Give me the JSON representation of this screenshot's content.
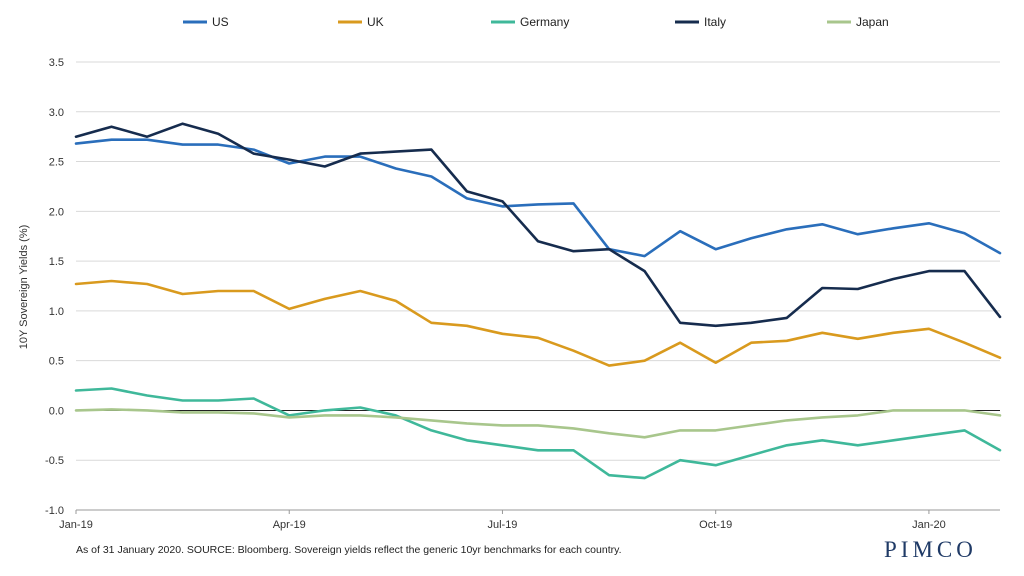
{
  "chart_data": {
    "type": "line",
    "title": "",
    "xlabel": "",
    "ylabel": "10Y Sovereign Yields (%)",
    "ylim": [
      -1.0,
      3.5
    ],
    "yticks": [
      "3.5",
      "3.0",
      "2.5",
      "2.0",
      "1.5",
      "1.0",
      "0.5",
      "0.0",
      "-0.5",
      "-1.0"
    ],
    "x_range": [
      0,
      13
    ],
    "xticks": [
      {
        "label": "Jan-19",
        "month": 0
      },
      {
        "label": "Apr-19",
        "month": 3
      },
      {
        "label": "Jul-19",
        "month": 6
      },
      {
        "label": "Oct-19",
        "month": 9
      },
      {
        "label": "Jan-20",
        "month": 12
      }
    ],
    "x": [
      0,
      0.5,
      1,
      1.5,
      2,
      2.5,
      3,
      3.5,
      4,
      4.5,
      5,
      5.5,
      6,
      6.5,
      7,
      7.5,
      8,
      8.5,
      9,
      9.5,
      10,
      10.5,
      11,
      11.5,
      12,
      12.5,
      13
    ],
    "legend_position": "top",
    "grid": true,
    "series": [
      {
        "name": "US",
        "color": "#2a6ebb",
        "values": [
          2.68,
          2.72,
          2.72,
          2.67,
          2.67,
          2.62,
          2.48,
          2.55,
          2.55,
          2.43,
          2.35,
          2.13,
          2.05,
          2.07,
          2.08,
          1.62,
          1.55,
          1.8,
          1.62,
          1.73,
          1.82,
          1.87,
          1.77,
          1.83,
          1.88,
          1.78,
          1.58
        ]
      },
      {
        "name": "UK",
        "color": "#d99a1e",
        "values": [
          1.27,
          1.3,
          1.27,
          1.17,
          1.2,
          1.2,
          1.02,
          1.12,
          1.2,
          1.1,
          0.88,
          0.85,
          0.77,
          0.73,
          0.6,
          0.45,
          0.5,
          0.68,
          0.48,
          0.68,
          0.7,
          0.78,
          0.72,
          0.78,
          0.82,
          0.68,
          0.53
        ]
      },
      {
        "name": "Germany",
        "color": "#3fb89a",
        "values": [
          0.2,
          0.22,
          0.15,
          0.1,
          0.1,
          0.12,
          -0.05,
          0.0,
          0.03,
          -0.05,
          -0.2,
          -0.3,
          -0.35,
          -0.4,
          -0.4,
          -0.65,
          -0.68,
          -0.5,
          -0.55,
          -0.45,
          -0.35,
          -0.3,
          -0.35,
          -0.3,
          -0.25,
          -0.2,
          -0.4
        ]
      },
      {
        "name": "Italy",
        "color": "#162c4e",
        "values": [
          2.75,
          2.85,
          2.75,
          2.88,
          2.78,
          2.58,
          2.52,
          2.45,
          2.58,
          2.6,
          2.62,
          2.2,
          2.1,
          1.7,
          1.6,
          1.62,
          1.4,
          0.88,
          0.85,
          0.88,
          0.93,
          1.23,
          1.22,
          1.32,
          1.4,
          1.4,
          0.94
        ]
      },
      {
        "name": "Japan",
        "color": "#a8c68c",
        "values": [
          0.0,
          0.01,
          0.0,
          -0.02,
          -0.02,
          -0.03,
          -0.07,
          -0.05,
          -0.05,
          -0.07,
          -0.1,
          -0.13,
          -0.15,
          -0.15,
          -0.18,
          -0.23,
          -0.27,
          -0.2,
          -0.2,
          -0.15,
          -0.1,
          -0.07,
          -0.05,
          0.0,
          0.0,
          0.0,
          -0.05
        ]
      }
    ]
  },
  "footnote": "As of 31 January 2020. SOURCE: Bloomberg.  Sovereign yields reflect the generic 10yr benchmarks for each country.",
  "logo": "PIMCO"
}
